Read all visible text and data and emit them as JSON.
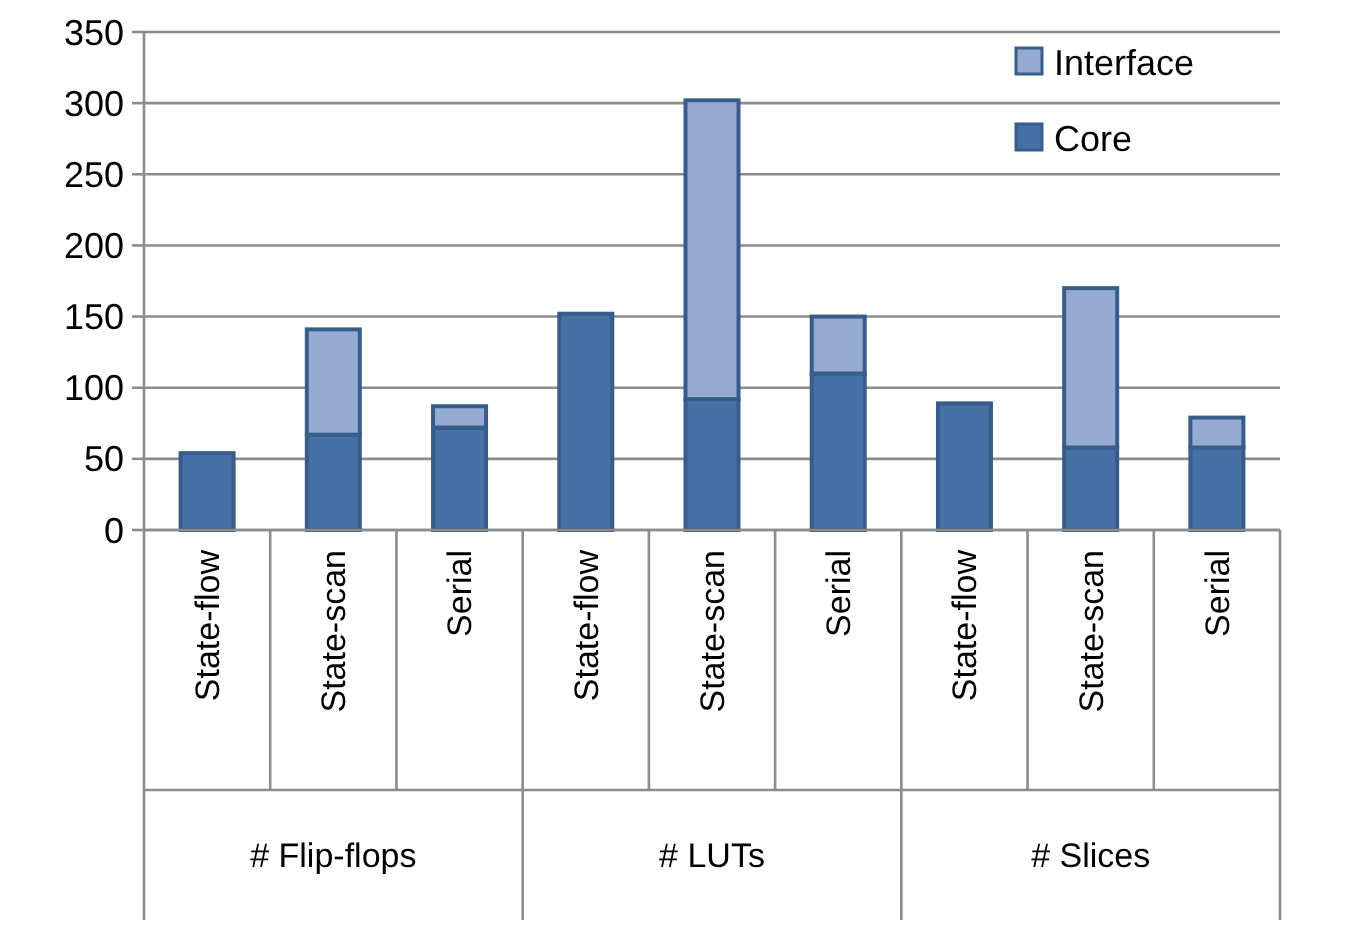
{
  "chart_data": {
    "type": "bar",
    "stacked": true,
    "categories": [
      "State-flow",
      "State-scan",
      "Serial",
      "State-flow",
      "State-scan",
      "Serial",
      "State-flow",
      "State-scan",
      "Serial"
    ],
    "series": [
      {
        "name": "Core",
        "color": "#4571a6",
        "values": [
          54,
          67,
          72,
          152,
          92,
          110,
          89,
          58,
          58
        ]
      },
      {
        "name": "Interface",
        "color": "#95abd2",
        "values": [
          0,
          74,
          15,
          0,
          210,
          40,
          0,
          112,
          21
        ]
      }
    ],
    "annotations": [
      "# Flip-flops",
      "# LUTs",
      "# Slices"
    ],
    "ylim": [
      0,
      350
    ],
    "yticks": [
      0,
      50,
      100,
      150,
      200,
      250,
      300,
      350
    ],
    "grid": "y",
    "legend": "top right"
  }
}
